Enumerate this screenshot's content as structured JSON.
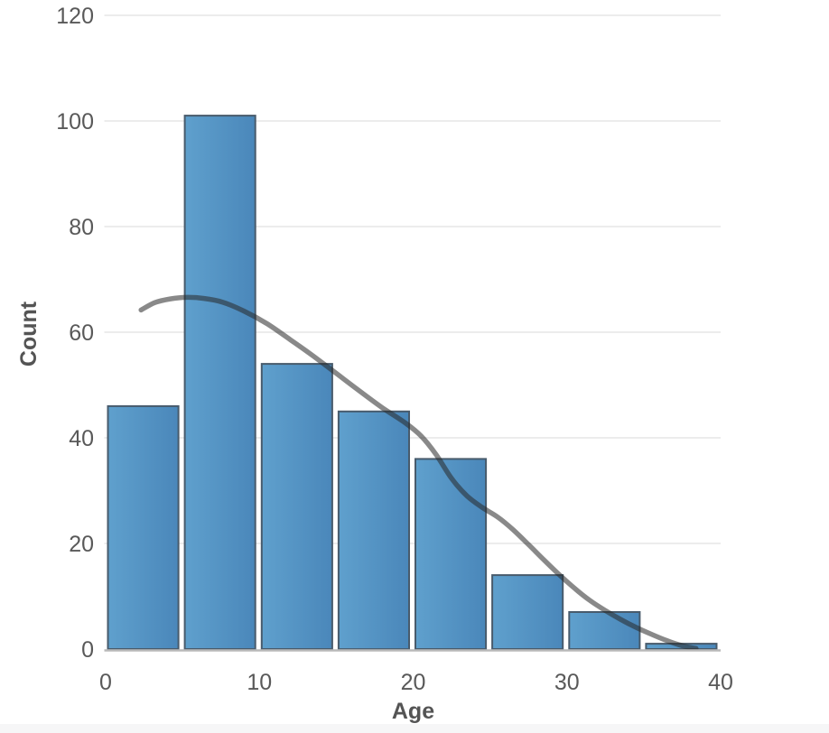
{
  "chart_data": {
    "type": "bar",
    "subtype": "histogram-with-density-curve",
    "title": "",
    "xlabel": "Age",
    "ylabel": "Count",
    "xlim": [
      0,
      40
    ],
    "ylim": [
      0,
      120
    ],
    "grid": true,
    "legend": "none",
    "x_ticks": [
      "0",
      "10",
      "20",
      "30",
      "40"
    ],
    "x_tick_values": [
      0,
      10,
      20,
      30,
      40
    ],
    "y_ticks": [
      "0",
      "20",
      "40",
      "60",
      "80",
      "100",
      "120"
    ],
    "y_tick_values": [
      0,
      20,
      40,
      60,
      80,
      100,
      120
    ],
    "bin_width": 5,
    "categories": [
      "0-5",
      "5-10",
      "10-15",
      "15-20",
      "20-25",
      "25-30",
      "30-35",
      "35-40"
    ],
    "bin_starts": [
      0,
      5,
      10,
      15,
      20,
      25,
      30,
      35
    ],
    "values": [
      46,
      101,
      54,
      45,
      36,
      14,
      7,
      1
    ],
    "density_curve": {
      "name": "smoothed-count-curve",
      "points": [
        [
          2.3,
          64.2
        ],
        [
          3.2,
          65.6
        ],
        [
          4.2,
          66.3
        ],
        [
          5.3,
          66.6
        ],
        [
          6.4,
          66.4
        ],
        [
          7.6,
          65.7
        ],
        [
          9.0,
          64.0
        ],
        [
          10.5,
          61.6
        ],
        [
          12.0,
          58.6
        ],
        [
          13.5,
          55.5
        ],
        [
          15.0,
          52.2
        ],
        [
          16.5,
          48.9
        ],
        [
          18.0,
          45.7
        ],
        [
          19.5,
          42.8
        ],
        [
          20.5,
          40.4
        ],
        [
          21.5,
          36.8
        ],
        [
          22.5,
          32.3
        ],
        [
          23.5,
          29.0
        ],
        [
          24.5,
          26.8
        ],
        [
          25.5,
          25.0
        ],
        [
          26.5,
          22.6
        ],
        [
          27.5,
          19.8
        ],
        [
          28.5,
          16.9
        ],
        [
          29.5,
          14.1
        ],
        [
          30.5,
          11.5
        ],
        [
          31.5,
          9.2
        ],
        [
          32.5,
          7.3
        ],
        [
          33.5,
          5.6
        ],
        [
          34.5,
          4.1
        ],
        [
          35.5,
          2.8
        ],
        [
          36.5,
          1.6
        ],
        [
          37.3,
          0.8
        ],
        [
          38.0,
          0.3
        ],
        [
          38.4,
          0.1
        ]
      ]
    },
    "colors": {
      "bar_fill_light": "#5FA0CD",
      "bar_fill_dark": "#4A87BA",
      "bar_border": "#485B6C",
      "curve": "rgba(40,40,40,0.55)",
      "gridline": "#ececec",
      "axis_line": "#b9b9b9",
      "tick_text": "#595959",
      "axis_title_text": "#545454",
      "footer_strip": "#f6f6f7"
    }
  }
}
